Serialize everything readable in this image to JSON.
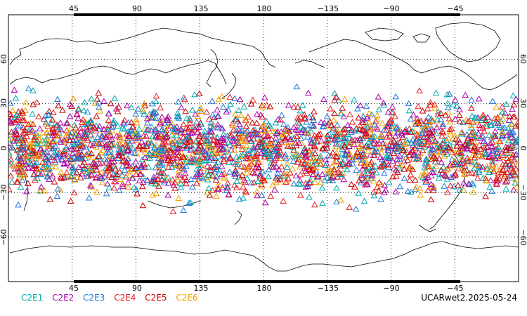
{
  "map": {
    "projection": "equirectangular",
    "center_longitude": 180,
    "lat_range": [
      -90,
      90
    ],
    "lon_range": [
      0,
      360
    ],
    "top_lon_ticks": [
      "45",
      "90",
      "135",
      "180",
      "−135",
      "−90",
      "−45"
    ],
    "bottom_lon_ticks": [
      "45",
      "90",
      "135",
      "180",
      "−135",
      "−90",
      "−45"
    ],
    "lat_ticks_left": [
      "60",
      "30",
      "0",
      "−30",
      "−60"
    ],
    "lat_ticks_right": [
      "60",
      "30",
      "0",
      "−30",
      "−60"
    ],
    "grid": "dotted",
    "marker_shape": "open triangle",
    "observation_lat_band": [
      -45,
      45
    ]
  },
  "legend": {
    "items": [
      {
        "label": "C2E1",
        "color": "#00aaaa"
      },
      {
        "label": "C2E2",
        "color": "#aa00aa"
      },
      {
        "label": "C2E3",
        "color": "#1e78dc"
      },
      {
        "label": "C2E4",
        "color": "#e61e1e"
      },
      {
        "label": "C2E5",
        "color": "#c80000"
      },
      {
        "label": "C2E6",
        "color": "#f0a000"
      }
    ]
  },
  "footer": {
    "dataset_label": "UCARwet2.2025-05-24"
  }
}
